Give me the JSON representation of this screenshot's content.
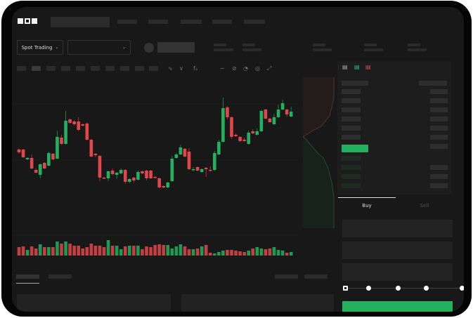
{
  "header": {
    "logo": "OKX"
  },
  "market": {
    "mode_label": "Spot Trading",
    "mode_icon": "chevron-down-icon",
    "pair_icon": "chevron-down-icon"
  },
  "toolbar": {
    "icons": [
      "indicator-icon",
      "indicator-icon",
      "formula-icon",
      "line-icon",
      "draw-icon",
      "timer-icon",
      "settings-icon",
      "fullscreen-icon"
    ]
  },
  "order_book": {
    "view_icons": [
      "book-both-icon",
      "book-bids-icon",
      "book-asks-icon"
    ]
  },
  "trade": {
    "tabs": [
      "Buy",
      "Sell"
    ],
    "active_tab": "Buy",
    "leverage_steps": 5,
    "selected_step": 0
  },
  "colors": {
    "up": "#22b15e",
    "down": "#e0464b",
    "background": "#181818"
  },
  "chart_data": {
    "type": "candlestick",
    "ylim": [
      40,
      180
    ],
    "grid": true,
    "candles": [
      [
        97,
        99,
        91,
        93
      ],
      [
        97,
        98,
        85,
        86
      ],
      [
        83,
        86,
        82,
        85
      ],
      [
        85,
        90,
        69,
        70
      ],
      [
        68,
        70,
        63,
        64
      ],
      [
        61,
        77,
        56,
        76
      ],
      [
        78,
        79,
        69,
        70
      ],
      [
        74,
        94,
        73,
        92
      ],
      [
        91,
        92,
        82,
        83
      ],
      [
        84,
        124,
        83,
        115
      ],
      [
        114,
        118,
        104,
        105
      ],
      [
        105,
        152,
        104,
        138
      ],
      [
        140,
        141,
        134,
        135
      ],
      [
        137,
        139,
        131,
        133
      ],
      [
        137,
        143,
        123,
        125
      ],
      [
        133,
        134,
        130,
        131
      ],
      [
        134,
        136,
        110,
        111
      ],
      [
        111,
        112,
        86,
        87
      ],
      [
        91,
        92,
        86,
        89
      ],
      [
        88,
        89,
        52,
        57
      ],
      [
        57,
        58,
        55,
        56
      ],
      [
        56,
        67,
        52,
        66
      ],
      [
        67,
        70,
        60,
        62
      ],
      [
        61,
        65,
        55,
        64
      ],
      [
        63,
        70,
        62,
        68
      ],
      [
        68,
        69,
        48,
        51
      ],
      [
        51,
        56,
        49,
        55
      ],
      [
        57,
        58,
        50,
        53
      ],
      [
        54,
        67,
        53,
        65
      ],
      [
        66,
        67,
        62,
        63
      ],
      [
        67,
        68,
        53,
        56
      ],
      [
        67,
        68,
        55,
        56
      ],
      [
        58,
        59,
        56,
        57
      ],
      [
        56,
        57,
        42,
        43
      ],
      [
        45,
        46,
        42,
        43
      ],
      [
        43,
        51,
        42,
        50
      ],
      [
        52,
        88,
        51,
        84
      ],
      [
        85,
        92,
        84,
        90
      ],
      [
        90,
        104,
        89,
        100
      ],
      [
        98,
        99,
        86,
        87
      ],
      [
        94,
        99,
        68,
        69
      ],
      [
        68,
        72,
        66,
        69
      ],
      [
        72,
        73,
        66,
        67
      ],
      [
        65,
        70,
        64,
        69
      ],
      [
        71,
        72,
        58,
        69
      ],
      [
        68,
        73,
        66,
        67
      ],
      [
        68,
        95,
        66,
        92
      ],
      [
        90,
        111,
        89,
        108
      ],
      [
        108,
        171,
        107,
        156
      ],
      [
        157,
        159,
        140,
        143
      ],
      [
        143,
        144,
        112,
        115
      ],
      [
        118,
        120,
        115,
        116
      ],
      [
        115,
        116,
        108,
        109
      ],
      [
        111,
        114,
        108,
        109
      ],
      [
        105,
        124,
        104,
        121
      ],
      [
        123,
        126,
        119,
        120
      ],
      [
        118,
        127,
        117,
        123
      ],
      [
        123,
        153,
        122,
        152
      ],
      [
        154,
        155,
        140,
        141
      ],
      [
        141,
        142,
        135,
        136
      ],
      [
        133,
        148,
        132,
        143
      ],
      [
        143,
        161,
        142,
        154
      ],
      [
        154,
        168,
        153,
        163
      ],
      [
        154,
        155,
        144,
        147
      ],
      [
        144,
        158,
        143,
        151
      ]
    ],
    "volumes": [
      12,
      13,
      8,
      13,
      10,
      16,
      12,
      12,
      12,
      20,
      17,
      20,
      17,
      14,
      14,
      10,
      12,
      17,
      14,
      14,
      12,
      22,
      14,
      14,
      9,
      13,
      14,
      14,
      14,
      9,
      13,
      12,
      15,
      16,
      15,
      15,
      10,
      13,
      16,
      13,
      9,
      9,
      10,
      13,
      15,
      4,
      3,
      5,
      7,
      8,
      8,
      7,
      6,
      5,
      7,
      10,
      12,
      10,
      9,
      10,
      12,
      8,
      7,
      4,
      5
    ]
  }
}
